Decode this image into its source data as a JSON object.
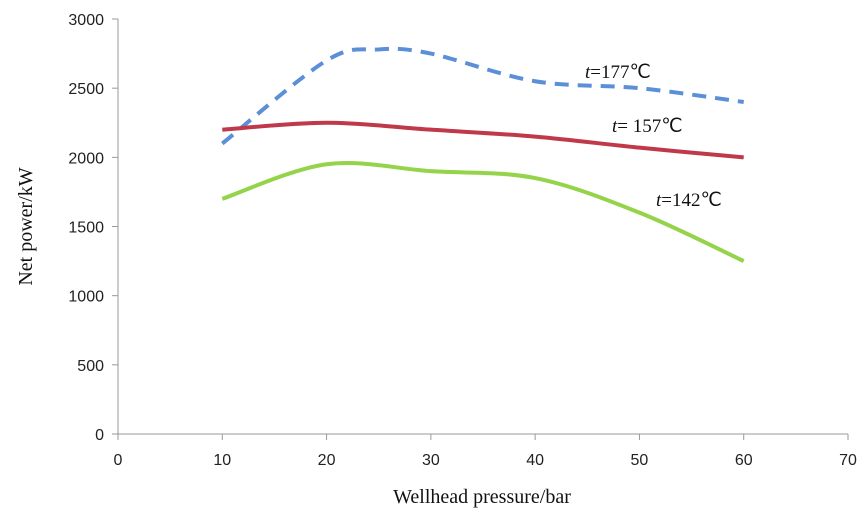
{
  "chart_data": {
    "type": "line",
    "title": "",
    "xlabel": "Wellhead pressure/bar",
    "ylabel": "Net power/kW",
    "xlim": [
      0,
      70
    ],
    "ylim": [
      0,
      3000
    ],
    "xticks": [
      0,
      10,
      20,
      30,
      40,
      50,
      60,
      70
    ],
    "yticks": [
      0,
      500,
      1000,
      1500,
      2000,
      2500,
      3000
    ],
    "grid": false,
    "legend": "none",
    "series": [
      {
        "label_var": "t",
        "label_value": "=177℃",
        "color": "#5b8fd8",
        "dash": true,
        "x": [
          10,
          20,
          25,
          30,
          40,
          50,
          60
        ],
        "y": [
          2100,
          2700,
          2780,
          2750,
          2550,
          2500,
          2400
        ]
      },
      {
        "label_var": "t",
        "label_value": "= 157℃",
        "color": "#c0394b",
        "dash": false,
        "x": [
          10,
          20,
          30,
          40,
          50,
          60
        ],
        "y": [
          2200,
          2250,
          2200,
          2150,
          2070,
          2000
        ]
      },
      {
        "label_var": "t",
        "label_value": "=142℃",
        "color": "#94d34a",
        "dash": false,
        "x": [
          10,
          20,
          30,
          40,
          50,
          60
        ],
        "y": [
          1700,
          1950,
          1900,
          1850,
          1600,
          1250
        ]
      }
    ]
  }
}
